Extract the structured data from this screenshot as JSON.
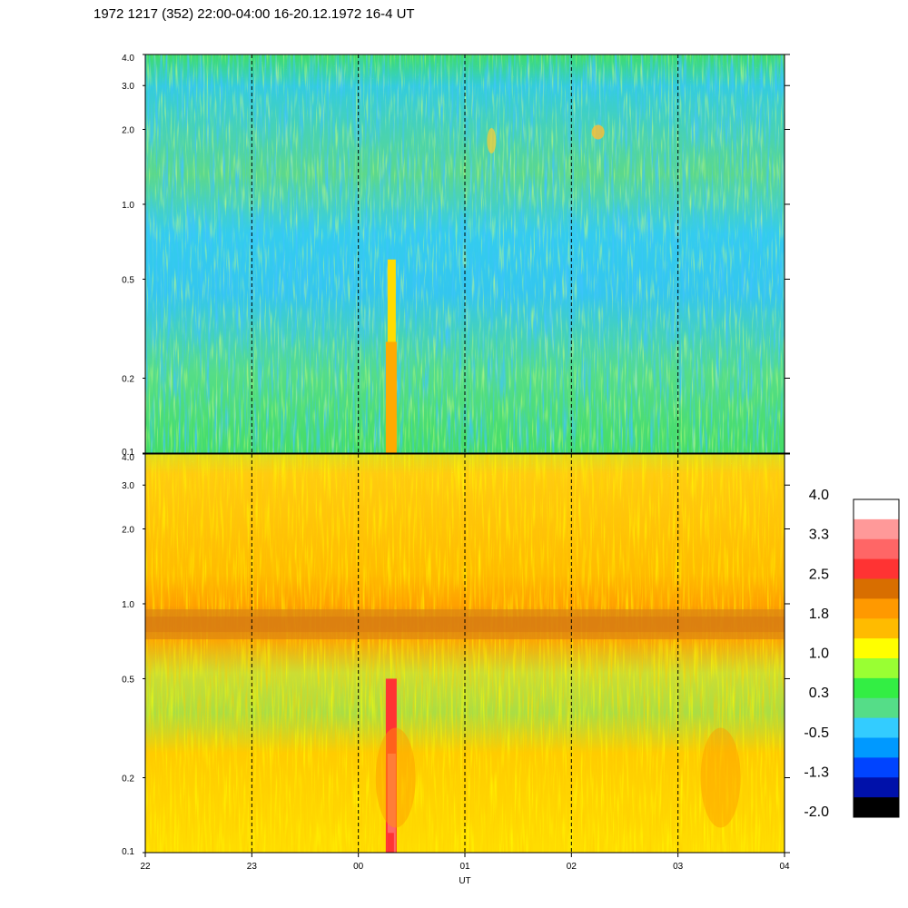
{
  "title": "1972 1217 (352) 22:00-04:00 16-20.12.1972  16-4 UT",
  "chart_data": [
    {
      "type": "heatmap",
      "panel": "top",
      "y_scale": "log",
      "ylim": [
        0.1,
        4.0
      ],
      "y_ticks": [
        "4.0",
        "3.0",
        "2.0",
        "1.0",
        "0.5",
        "0.2",
        "0.1"
      ],
      "y_tick_values": [
        4.0,
        3.0,
        2.0,
        1.0,
        0.5,
        0.2,
        0.1
      ],
      "x_hours": [
        "22",
        "23",
        "00",
        "01",
        "02",
        "03",
        "04"
      ],
      "dashed_vertical_lines_at": [
        "23",
        "00",
        "01",
        "02",
        "03"
      ],
      "dominant_level": "-0.5 to 0.3",
      "features": [
        {
          "description": "strong burst",
          "time_hour": 0.3,
          "level": 1.4
        },
        {
          "description": "enhancement near 2.0",
          "time_hour": 1.25,
          "level": 1.4
        },
        {
          "description": "enhancement near 2.0",
          "time_hour": 2.25,
          "level": 1.4
        }
      ]
    },
    {
      "type": "heatmap",
      "panel": "bottom",
      "y_scale": "log",
      "ylim": [
        0.1,
        4.0
      ],
      "y_ticks": [
        "4.0",
        "3.0",
        "2.0",
        "1.0",
        "0.5",
        "0.2",
        "0.1"
      ],
      "y_tick_values": [
        4.0,
        3.0,
        2.0,
        1.0,
        0.5,
        0.2,
        0.1
      ],
      "x_hours": [
        "22",
        "23",
        "00",
        "01",
        "02",
        "03",
        "04"
      ],
      "xlabel": "UT",
      "dashed_vertical_lines_at": [
        "23",
        "00",
        "01",
        "02",
        "03"
      ],
      "dominant_level": "1.0 to 1.8",
      "features": [
        {
          "description": "persistent band near 0.85",
          "level": 2.2
        },
        {
          "description": "strong burst",
          "time_hour": 0.3,
          "level": 3.0
        }
      ]
    }
  ],
  "colorbar": {
    "labels": [
      "4.0",
      "3.3",
      "2.5",
      "1.8",
      "1.0",
      "0.3",
      "-0.5",
      "-1.3",
      "-2.0"
    ],
    "colors": [
      "#ffffff",
      "#ff9999",
      "#ff6666",
      "#ff3333",
      "#d86e00",
      "#ff9900",
      "#ffbb00",
      "#ffff00",
      "#99ff33",
      "#33ee44",
      "#55dd88",
      "#33ccff",
      "#0099ff",
      "#0044ff",
      "#0011aa",
      "#000000"
    ]
  }
}
